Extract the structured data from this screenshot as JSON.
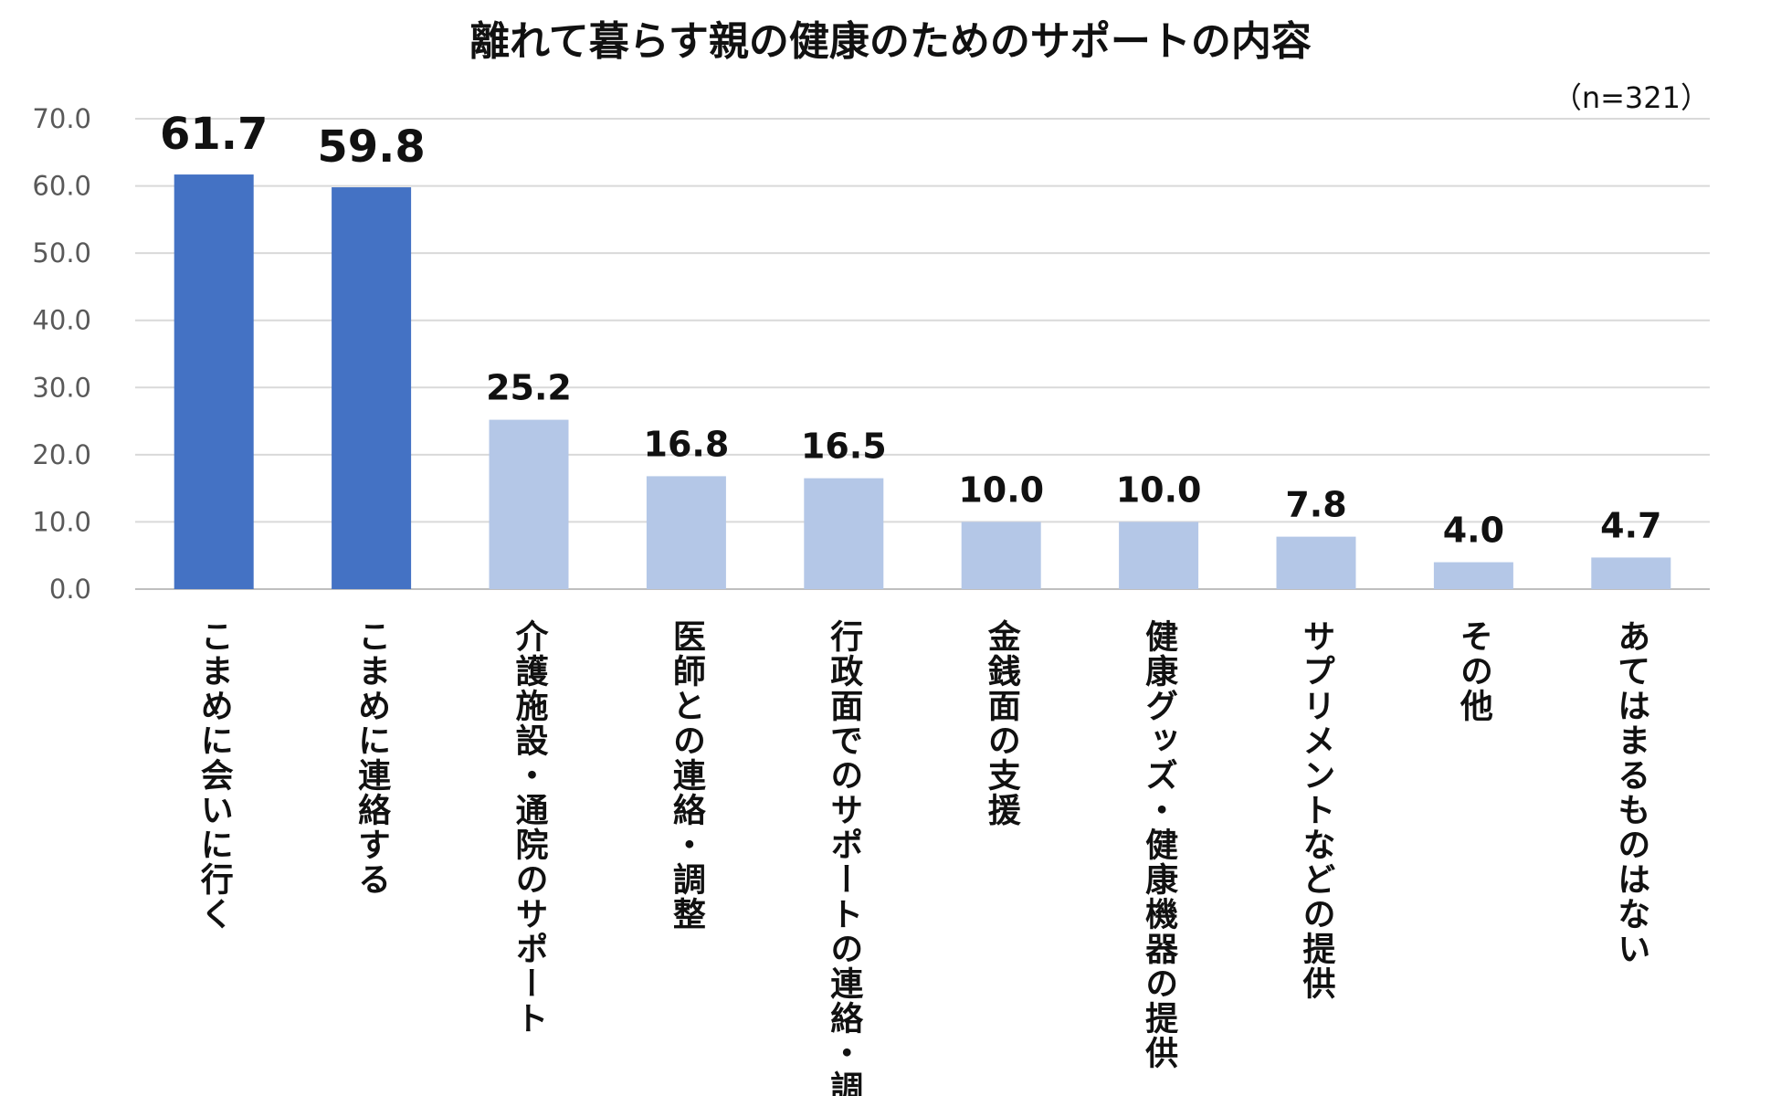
{
  "chart_data": {
    "type": "bar",
    "title": "離れて暮らす親の健康のためのサポートの内容",
    "note": "（n=321）",
    "xlabel": "",
    "ylabel": "",
    "ylim": [
      0,
      70
    ],
    "yticks": [
      "0.0",
      "10.0",
      "20.0",
      "30.0",
      "40.0",
      "50.0",
      "60.0",
      "70.0"
    ],
    "grid": true,
    "categories": [
      "こまめに会いに行く",
      "こまめに連絡する",
      "介護施設・通院のサポート",
      "医師との連絡・調整",
      "行政面でのサポートの連絡・調整",
      "金銭面の支援",
      "健康グッズ・健康機器の提供",
      "サプリメントなどの提供",
      "その他",
      "あてはまるものはない"
    ],
    "values": [
      61.7,
      59.8,
      25.2,
      16.8,
      16.5,
      10.0,
      10.0,
      7.8,
      4.0,
      4.7
    ],
    "value_labels": [
      "61.7",
      "59.8",
      "25.2",
      "16.8",
      "16.5",
      "10.0",
      "10.0",
      "7.8",
      "4.0",
      "4.7"
    ],
    "highlight_count": 2,
    "colors": {
      "highlight": "#4472c4",
      "normal": "#b4c7e7"
    }
  }
}
